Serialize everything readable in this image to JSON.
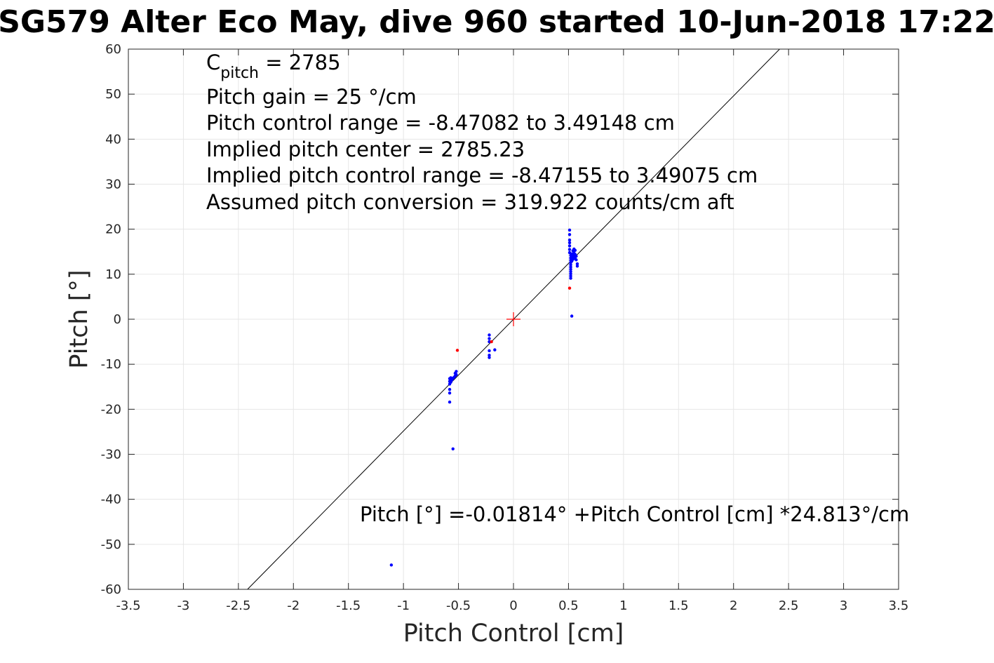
{
  "chart_data": {
    "type": "scatter",
    "title": "SG579 Alter Eco May, dive 960 started 10-Jun-2018 17:22",
    "xlabel": "Pitch Control [cm]",
    "ylabel": "Pitch [°]",
    "xlim": [
      -3.5,
      3.5
    ],
    "ylim": [
      -60,
      60
    ],
    "x_ticks": [
      -3.5,
      -3,
      -2.5,
      -2,
      -1.5,
      -1,
      -0.5,
      0,
      0.5,
      1,
      1.5,
      2,
      2.5,
      3,
      3.5
    ],
    "y_ticks": [
      -60,
      -50,
      -40,
      -30,
      -20,
      -10,
      0,
      10,
      20,
      30,
      40,
      50,
      60
    ],
    "grid": true,
    "annotations": {
      "c_pitch_main": "C",
      "c_pitch_sub": "pitch",
      "c_pitch_value": " = 2785",
      "lines": [
        "Pitch gain = 25 °/cm",
        "Pitch control range = -8.47082 to 3.49148 cm",
        "Implied pitch center = 2785.23",
        "Implied pitch control range = -8.47155 to 3.49075 cm",
        "Assumed pitch conversion = 319.922 counts/cm aft"
      ],
      "fit_equation": "Pitch [°] =-0.01814° +Pitch Control [cm] *24.813°/cm"
    },
    "fit_line": {
      "intercept": -0.01814,
      "slope": 24.813
    },
    "center_marker": {
      "x": 0,
      "y": 0
    },
    "series": [
      {
        "color": "#0000ff",
        "points": [
          [
            0.51,
            19.8
          ],
          [
            0.51,
            18.8
          ],
          [
            0.51,
            17.6
          ],
          [
            0.51,
            17.0
          ],
          [
            0.51,
            16.3
          ],
          [
            0.51,
            15.5
          ],
          [
            0.51,
            14.8
          ],
          [
            0.52,
            14.2
          ],
          [
            0.52,
            13.6
          ],
          [
            0.52,
            13.1
          ],
          [
            0.52,
            12.6
          ],
          [
            0.52,
            12.1
          ],
          [
            0.52,
            11.6
          ],
          [
            0.52,
            11.1
          ],
          [
            0.52,
            10.6
          ],
          [
            0.52,
            10.1
          ],
          [
            0.52,
            9.6
          ],
          [
            0.52,
            9.1
          ],
          [
            0.53,
            14.5
          ],
          [
            0.53,
            13.8
          ],
          [
            0.53,
            12.9
          ],
          [
            0.54,
            15.2
          ],
          [
            0.54,
            14.1
          ],
          [
            0.54,
            13.3
          ],
          [
            0.55,
            15.6
          ],
          [
            0.55,
            14.7
          ],
          [
            0.55,
            13.9
          ],
          [
            0.56,
            15.3
          ],
          [
            0.56,
            14.4
          ],
          [
            0.56,
            13.5
          ],
          [
            0.57,
            14.0
          ],
          [
            0.57,
            13.2
          ],
          [
            0.58,
            12.3
          ],
          [
            0.58,
            11.8
          ],
          [
            0.53,
            0.7
          ],
          [
            -0.58,
            -13.2
          ],
          [
            -0.58,
            -13.8
          ],
          [
            -0.58,
            -14.4
          ],
          [
            -0.57,
            -13.0
          ],
          [
            -0.57,
            -14.0
          ],
          [
            -0.56,
            -13.5
          ],
          [
            -0.55,
            -13.1
          ],
          [
            -0.54,
            -12.9
          ],
          [
            -0.53,
            -12.6
          ],
          [
            -0.53,
            -12.0
          ],
          [
            -0.52,
            -11.6
          ],
          [
            -0.52,
            -12.3
          ],
          [
            -0.58,
            -15.6
          ],
          [
            -0.58,
            -16.4
          ],
          [
            -0.58,
            -18.4
          ],
          [
            -0.55,
            -28.8
          ],
          [
            -0.22,
            -3.5
          ],
          [
            -0.22,
            -4.3
          ],
          [
            -0.22,
            -5.0
          ],
          [
            -0.22,
            -7.0
          ],
          [
            -0.22,
            -8.0
          ],
          [
            -0.22,
            -8.5
          ],
          [
            -0.17,
            -6.8
          ],
          [
            -1.11,
            -54.6
          ]
        ]
      },
      {
        "color": "#ff0000",
        "points": [
          [
            0.51,
            6.9
          ],
          [
            -0.51,
            -6.9
          ],
          [
            -0.2,
            -5.0
          ]
        ]
      }
    ]
  }
}
